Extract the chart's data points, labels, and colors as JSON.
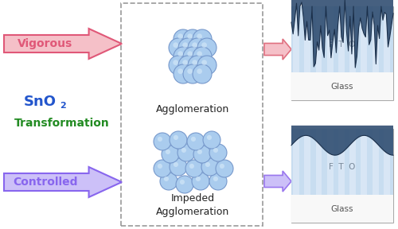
{
  "bg_color": "#ffffff",
  "vigorous_text": "Vigorous",
  "vigorous_color": "#e05878",
  "vigorous_bg": "#f5c0c8",
  "sno2_color": "#2255cc",
  "transform_text": "Transformation",
  "transform_color": "#228B22",
  "controlled_text": "Controlled",
  "controlled_color": "#8866ee",
  "controlled_bg": "#ccc0f8",
  "agglom_text": "Agglomeration",
  "impeded_text": "Impeded\nAgglomeration",
  "ball_color": "#aaccee",
  "ball_highlight": "#d4e8f8",
  "ball_edge": "#7799cc",
  "fto_bg": "#c8ddf0",
  "fto_stripe": "#deeaf8",
  "fto_dark": "#2c4a6e",
  "glass_color": "#f8f8f8",
  "arrow1_color": "#e07080",
  "arrow1_bg": "#f5c0c8",
  "arrow2_color": "#9977ee",
  "arrow2_bg": "#ccc0f8",
  "dash_color": "#999999"
}
